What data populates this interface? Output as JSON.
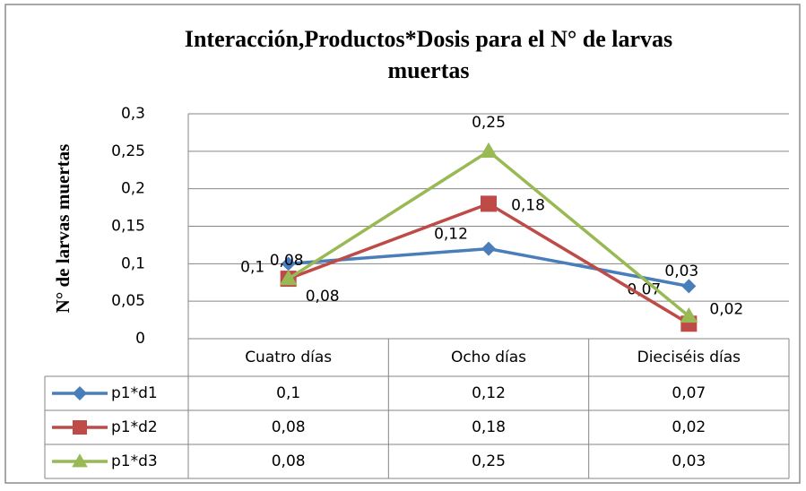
{
  "chart_data": {
    "type": "line",
    "title": "Interacción,Productos*Dosis para el N° de larvas muertas",
    "title_lines": [
      "Interacción,Productos*Dosis para el N° de larvas",
      "muertas"
    ],
    "y_label": "N° de larvas muertas",
    "categories": [
      "Cuatro días",
      "Ocho  días",
      "Dieciséis días"
    ],
    "series": [
      {
        "name": "p1*d1",
        "color": "#4a7ebb",
        "marker": "diamond",
        "values": [
          0.1,
          0.12,
          0.07
        ],
        "value_labels": [
          "0,1",
          "0,12",
          "0,07"
        ]
      },
      {
        "name": "p1*d2",
        "color": "#be4b48",
        "marker": "square",
        "values": [
          0.08,
          0.18,
          0.02
        ],
        "value_labels": [
          "0,08",
          "0,18",
          "0,02"
        ]
      },
      {
        "name": "p1*d3",
        "color": "#98b954",
        "marker": "triangle",
        "values": [
          0.08,
          0.25,
          0.03
        ],
        "value_labels": [
          "0,08",
          "0,25",
          "0,03"
        ]
      }
    ],
    "ylim": [
      0,
      0.3
    ],
    "yticks": [
      0,
      {
        "value": 0.05,
        "label": "0,05"
      },
      {
        "value": 0.1,
        "label": "0,1"
      },
      {
        "value": 0.15,
        "label": "0,15"
      },
      {
        "value": 0.2,
        "label": "0,2"
      },
      {
        "value": 0.25,
        "label": "0,25"
      },
      {
        "value": 0.3,
        "label": "0,3"
      }
    ],
    "grid": true,
    "data_table": true
  }
}
